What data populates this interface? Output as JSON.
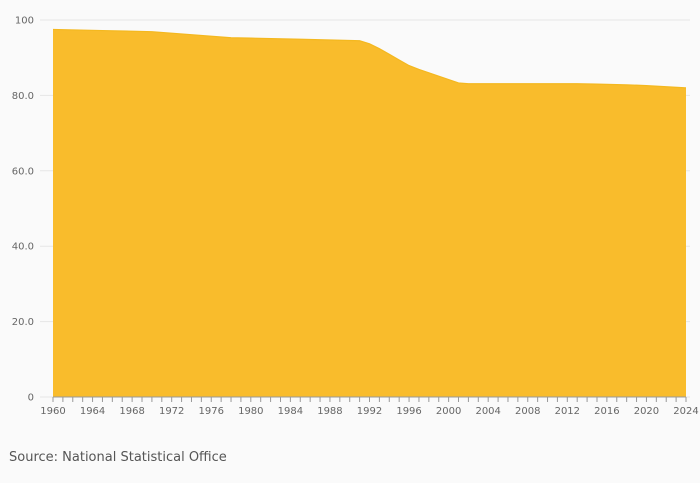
{
  "chart_data": {
    "type": "area",
    "title": "",
    "xlabel": "",
    "ylabel": "",
    "x": [
      1960,
      1965,
      1970,
      1975,
      1978,
      1980,
      1985,
      1988,
      1991,
      1992,
      1993,
      1994,
      1995,
      1996,
      1997,
      1998,
      1999,
      2000,
      2001,
      2002,
      2005,
      2010,
      2013,
      2015,
      2018,
      2020,
      2022,
      2024
    ],
    "series": [
      {
        "values": [
          97.5,
          97.2,
          96.9,
          95.9,
          95.3,
          95.2,
          94.9,
          94.7,
          94.5,
          93.7,
          92.4,
          90.9,
          89.4,
          87.9,
          86.9,
          86.0,
          85.1,
          84.2,
          83.3,
          83.1,
          83.1,
          83.1,
          83.1,
          83.0,
          82.8,
          82.6,
          82.3,
          82.0
        ]
      }
    ],
    "xlim": [
      1960,
      2024
    ],
    "ylim": [
      0,
      100
    ],
    "x_ticks": [
      "1960",
      "1964",
      "1968",
      "1972",
      "1976",
      "1980",
      "1984",
      "1988",
      "1992",
      "1996",
      "2000",
      "2004",
      "2008",
      "2012",
      "2016",
      "2020",
      "2024"
    ],
    "y_ticks": [
      0,
      20,
      40,
      60,
      80,
      100
    ],
    "y_tick_labels": [
      "0",
      "20.0",
      "40.0",
      "60.0",
      "80.0",
      "100"
    ],
    "grid": true,
    "fill_color": "#f9bc2c",
    "line_color": "#f4b81f"
  },
  "source_text": "Source: National Statistical Office"
}
